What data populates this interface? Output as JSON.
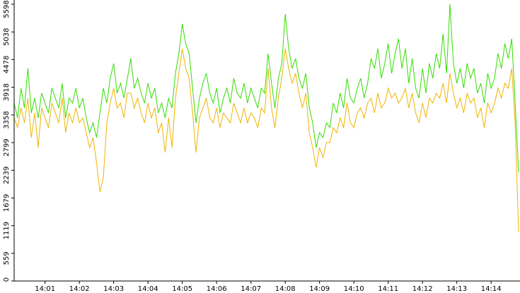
{
  "chart_data": {
    "type": "line",
    "categories": [
      null,
      null,
      null,
      null,
      null,
      null,
      null,
      null,
      null,
      "14:01",
      null,
      null,
      null,
      null,
      null,
      null,
      null,
      null,
      null,
      "14:02",
      null,
      null,
      null,
      null,
      null,
      null,
      null,
      null,
      null,
      "14:03",
      null,
      null,
      null,
      null,
      null,
      null,
      null,
      null,
      null,
      "14:04",
      null,
      null,
      null,
      null,
      null,
      null,
      null,
      null,
      null,
      "14:05",
      null,
      null,
      null,
      null,
      null,
      null,
      null,
      null,
      null,
      "14:06",
      null,
      null,
      null,
      null,
      null,
      null,
      null,
      null,
      null,
      "14:07",
      null,
      null,
      null,
      null,
      null,
      null,
      null,
      null,
      null,
      "14:08",
      null,
      null,
      null,
      null,
      null,
      null,
      null,
      null,
      null,
      "14:09",
      null,
      null,
      null,
      null,
      null,
      null,
      null,
      null,
      null,
      "14:10",
      null,
      null,
      null,
      null,
      null,
      null,
      null,
      null,
      null,
      "14:11",
      null,
      null,
      null,
      null,
      null,
      null,
      null,
      null,
      null,
      "14:12",
      null,
      null,
      null,
      null,
      null,
      null,
      null,
      null,
      null,
      "14:13",
      null,
      null,
      null,
      null,
      null,
      null,
      null,
      null,
      null,
      "14:14",
      null,
      null,
      null,
      null,
      null,
      null,
      null,
      null
    ],
    "series": [
      {
        "color": "#33dd00",
        "values": [
          3600,
          3300,
          3900,
          3500,
          4300,
          3400,
          3700,
          3300,
          3800,
          3600,
          3400,
          3900,
          3700,
          3500,
          4000,
          3300,
          3700,
          3600,
          3900,
          3500,
          3700,
          3300,
          3000,
          3200,
          2900,
          3400,
          3900,
          3600,
          4100,
          4400,
          3800,
          4000,
          3700,
          4100,
          4500,
          3900,
          4100,
          3800,
          3600,
          4000,
          3700,
          3900,
          3400,
          3600,
          3300,
          3700,
          3500,
          4200,
          4600,
          5200,
          4800,
          4600,
          3900,
          3200,
          3700,
          4000,
          4200,
          3800,
          3600,
          3900,
          3400,
          3700,
          3900,
          3600,
          4100,
          3800,
          3700,
          4000,
          3600,
          3900,
          3700,
          3500,
          3900,
          3800,
          4600,
          4000,
          3500,
          4100,
          4400,
          5400,
          4700,
          4300,
          4500,
          4100,
          3900,
          4200,
          3500,
          3200,
          2700,
          3000,
          2900,
          3200,
          3100,
          3600,
          3400,
          3800,
          3500,
          4100,
          3700,
          3600,
          3900,
          4100,
          3700,
          4000,
          4500,
          4300,
          4700,
          4100,
          4400,
          4800,
          4200,
          4600,
          4900,
          4300,
          4700,
          4000,
          4500,
          3900,
          3700,
          4300,
          3800,
          4400,
          4100,
          4600,
          4300,
          5000,
          4200,
          5600,
          4400,
          4000,
          4300,
          3900,
          4400,
          4100,
          4300,
          3800,
          4000,
          3600,
          4200,
          3900,
          4100,
          4600,
          4300,
          4800,
          4500,
          4900,
          3600,
          2200
        ]
      },
      {
        "color": "#f0b400",
        "values": [
          3300,
          3100,
          3500,
          3200,
          3700,
          2900,
          3400,
          2700,
          3500,
          3300,
          3100,
          3600,
          3400,
          3200,
          3700,
          3000,
          3400,
          3200,
          3500,
          3200,
          3300,
          3000,
          2700,
          2900,
          2400,
          1800,
          2100,
          3200,
          3600,
          3900,
          3500,
          3600,
          3300,
          3800,
          3800,
          3500,
          3700,
          3400,
          3200,
          3600,
          3300,
          3500,
          3000,
          3200,
          2600,
          3300,
          2700,
          3700,
          4200,
          4700,
          4300,
          4100,
          3400,
          2600,
          3300,
          3500,
          3700,
          3300,
          3200,
          3500,
          3100,
          3400,
          3300,
          3200,
          3600,
          3400,
          3200,
          3500,
          3200,
          3400,
          3300,
          3100,
          3500,
          3400,
          4300,
          3500,
          3100,
          3700,
          4100,
          4700,
          4300,
          4000,
          4200,
          3800,
          3500,
          3800,
          3000,
          2700,
          2300,
          2700,
          2500,
          2800,
          2800,
          3100,
          3000,
          3300,
          3100,
          3600,
          3200,
          3100,
          3400,
          3500,
          3300,
          3600,
          3700,
          3400,
          3800,
          3500,
          3600,
          3900,
          3700,
          3800,
          3600,
          3700,
          3900,
          3500,
          3800,
          3400,
          3200,
          3600,
          3300,
          3700,
          3600,
          3800,
          3700,
          4000,
          3600,
          4200,
          3800,
          3500,
          3700,
          3400,
          3800,
          3600,
          3700,
          3300,
          3500,
          3100,
          3600,
          3400,
          3600,
          3900,
          3700,
          4000,
          3900,
          4300,
          3200,
          1000
        ]
      }
    ],
    "ylim": [
      0,
      5598
    ],
    "yticks": [
      0,
      559,
      1119,
      1679,
      2239,
      2799,
      3358,
      3918,
      4478,
      5038,
      5598
    ]
  }
}
